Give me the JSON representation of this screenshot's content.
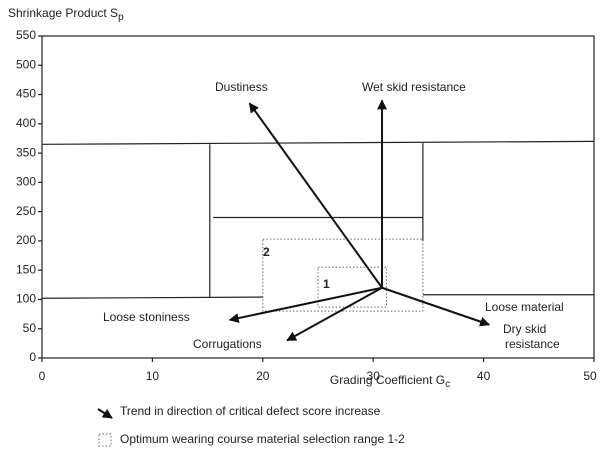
{
  "chart_data": {
    "type": "line",
    "ylabel": "Shrinkage Product S",
    "ylabel_sub": "p",
    "xlabel": "Grading Coefficient G",
    "xlabel_sub": "c",
    "xlim": [
      0,
      50
    ],
    "xticks": [
      0,
      10,
      20,
      30,
      40,
      50
    ],
    "ylim": [
      0,
      550
    ],
    "yticks": [
      0,
      50,
      100,
      150,
      200,
      250,
      300,
      350,
      400,
      450,
      500,
      550
    ],
    "boundaries": [
      {
        "x": [
          0,
          50
        ],
        "y": [
          365,
          370
        ]
      },
      {
        "x": [
          15.2,
          15.2
        ],
        "y": [
          365,
          103
        ]
      },
      {
        "x": [
          0,
          20
        ],
        "y": [
          102,
          104
        ]
      },
      {
        "x": [
          34.5,
          34.5
        ],
        "y": [
          367,
          200
        ]
      },
      {
        "x": [
          34.5,
          50
        ],
        "y": [
          108,
          108
        ]
      },
      {
        "x": [
          15.5,
          34.5
        ],
        "y": [
          240,
          240
        ]
      }
    ],
    "ranges": [
      {
        "label": "2",
        "x": [
          20,
          34.5
        ],
        "y": [
          80,
          203
        ]
      },
      {
        "label": "1",
        "x": [
          25,
          31.2
        ],
        "y": [
          87,
          155
        ]
      }
    ],
    "origin": {
      "x": 30.8,
      "y": 120
    },
    "arrows": [
      {
        "label": [
          "Dustiness"
        ],
        "x": 18.8,
        "y": 435
      },
      {
        "label": [
          "Wet skid resistance"
        ],
        "x": 30.8,
        "y": 440
      },
      {
        "label": [
          "Loose stoniness"
        ],
        "x": 17,
        "y": 65
      },
      {
        "label": [
          "Corrugations"
        ],
        "x": 22.2,
        "y": 30
      },
      {
        "label": [
          "Dry skid",
          "resistance"
        ],
        "x": 40.5,
        "y": 57
      }
    ],
    "annotations": [
      "Loose material"
    ],
    "legend": [
      "Trend in direction of critical defect score increase",
      "Optimum wearing course material selection range 1-2"
    ]
  }
}
